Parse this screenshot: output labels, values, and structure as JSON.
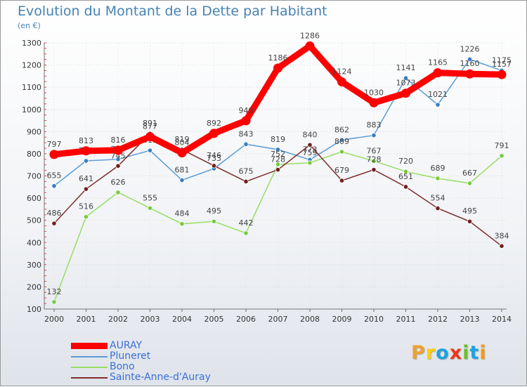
{
  "header": {
    "title": "Evolution du Montant de la Dette par Habitant",
    "subtitle": "(en €)"
  },
  "logo": {
    "text": "Proxiti",
    "colors": [
      "#f0a030",
      "#ffd000",
      "#1fa2e0",
      "#e83a1a",
      "#6fbf2f",
      "#1fa2e0",
      "#ff9900"
    ]
  },
  "chart_data": {
    "type": "line",
    "title": "Evolution du Montant de la Dette par Habitant",
    "subtitle": "(en €)",
    "xlabel": "",
    "ylabel": "",
    "categories": [
      "2000",
      "2001",
      "2002",
      "2003",
      "2004",
      "2005",
      "2006",
      "2007",
      "2008",
      "2009",
      "2010",
      "2011",
      "2012",
      "2013",
      "2014"
    ],
    "ylim": [
      100,
      1300
    ],
    "yticks": [
      100,
      200,
      300,
      400,
      500,
      600,
      700,
      800,
      900,
      1000,
      1100,
      1200,
      1300
    ],
    "grid": true,
    "legend_position": "bottom-left",
    "series": [
      {
        "name": "AURAY",
        "color": "#ff0000",
        "emphasis": true,
        "values": [
          797,
          813,
          816,
          877,
          804,
          892,
          949,
          1186,
          1286,
          1124,
          1030,
          1073,
          1165,
          1160,
          1157
        ]
      },
      {
        "name": "Pluneret",
        "color": "#5b9bd5",
        "marker": "#3a7cc0",
        "values": [
          655,
          768,
          775,
          815,
          681,
          733,
          843,
          819,
          773,
          862,
          883,
          1141,
          1021,
          1226,
          1175
        ]
      },
      {
        "name": "Bono",
        "color": "#99dd66",
        "marker": "#79c843",
        "values": [
          132,
          516,
          626,
          555,
          484,
          495,
          442,
          752,
          759,
          809,
          767,
          720,
          689,
          667,
          791
        ]
      },
      {
        "name": "Sainte-Anne-d'Auray",
        "color": "#7f2b2b",
        "marker": "#6e1f1f",
        "values": [
          486,
          641,
          745,
          891,
          819,
          746,
          675,
          728,
          840,
          679,
          728,
          651,
          554,
          495,
          384
        ]
      }
    ]
  }
}
